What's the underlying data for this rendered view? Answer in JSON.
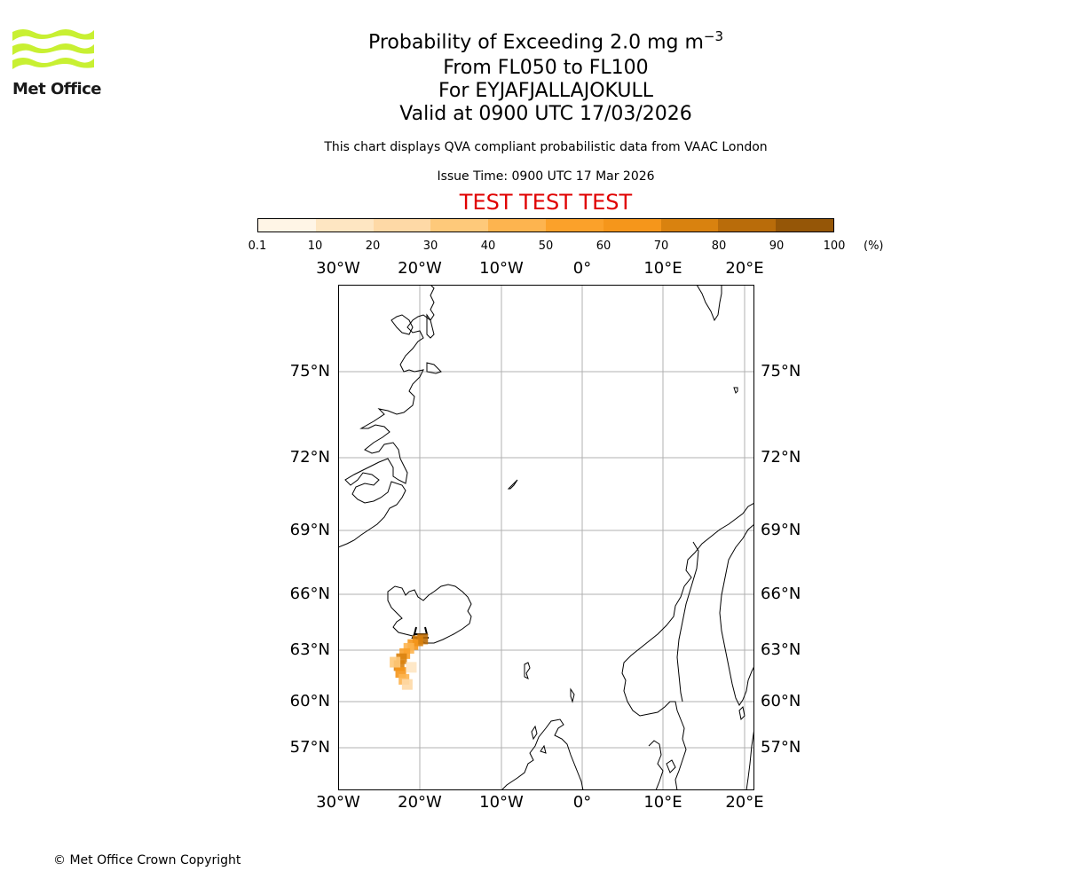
{
  "logo": {
    "text": "Met Office",
    "color": "#c8f032"
  },
  "title": {
    "prefix": "Probability of Exceeding 2.0 mg m",
    "superscript": "−3",
    "line2": "From FL050 to FL100",
    "line3": "For EYJAFJALLAJOKULL",
    "line4": "Valid at 0900 UTC 17/03/2026"
  },
  "description": "This chart displays QVA compliant probabilistic data from VAAC London",
  "issue_time": "Issue Time: 0900 UTC 17 Mar 2026",
  "test_banner": "TEST TEST TEST",
  "colorbar": {
    "ticks": [
      "0.1",
      "10",
      "20",
      "30",
      "40",
      "50",
      "60",
      "70",
      "80",
      "90",
      "100"
    ],
    "unit": "(%)",
    "colors": [
      "#fff5e6",
      "#fee6c2",
      "#fed9a6",
      "#fec97a",
      "#fdb44f",
      "#fba12a",
      "#f5961b",
      "#d9820f",
      "#b96c0a",
      "#955607",
      "#6e3f05"
    ]
  },
  "map": {
    "lon_labels": [
      "30°W",
      "20°W",
      "10°W",
      "0°",
      "10°E",
      "20°E"
    ],
    "lat_labels": [
      "75°N",
      "72°N",
      "69°N",
      "66°N",
      "63°N",
      "60°N",
      "57°N"
    ],
    "colors": {
      "coast": "#000000",
      "grid": "#b0b0b0"
    }
  },
  "copyright": "© Met Office Crown Copyright",
  "chart_data": {
    "type": "heatmap",
    "title": "Probability of Exceeding 2.0 mg m−3",
    "subtitle": "From FL050 to FL100, For EYJAFJALLAJOKULL, Valid at 0900 UTC 17/03/2026",
    "units": "%",
    "colorbar_range": [
      0.1,
      100
    ],
    "lon_range": [
      -30,
      21
    ],
    "lat_range": [
      55,
      78
    ],
    "plume": [
      {
        "lon": -19.6,
        "lat": 63.6,
        "value": 85
      },
      {
        "lon": -20.2,
        "lat": 63.5,
        "value": 70
      },
      {
        "lon": -20.8,
        "lat": 63.3,
        "value": 60
      },
      {
        "lon": -21.3,
        "lat": 63.1,
        "value": 45
      },
      {
        "lon": -21.8,
        "lat": 62.8,
        "value": 55
      },
      {
        "lon": -22.2,
        "lat": 62.5,
        "value": 70
      },
      {
        "lon": -22.5,
        "lat": 62.1,
        "value": 75
      },
      {
        "lon": -22.3,
        "lat": 61.7,
        "value": 60
      },
      {
        "lon": -21.9,
        "lat": 61.3,
        "value": 40
      },
      {
        "lon": -21.5,
        "lat": 61.0,
        "value": 20
      },
      {
        "lon": -23.0,
        "lat": 62.3,
        "value": 30
      },
      {
        "lon": -21.0,
        "lat": 62.0,
        "value": 15
      }
    ]
  }
}
